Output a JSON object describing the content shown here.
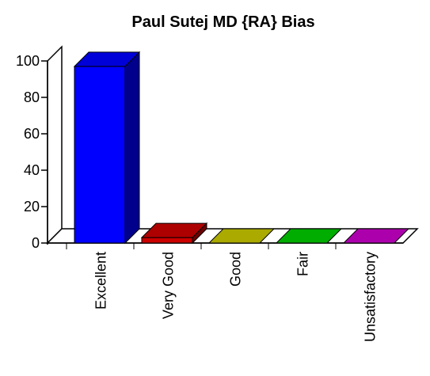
{
  "chart_data": {
    "type": "bar3d",
    "title": "Paul Sutej MD {RA} Bias",
    "categories": [
      "Excellent",
      "Very Good",
      "Good",
      "Fair",
      "Unsatisfactory"
    ],
    "values": [
      97,
      3,
      0,
      0,
      0
    ],
    "colors": [
      "#0000ff",
      "#cc0000",
      "#c8c800",
      "#00cc00",
      "#cc00cc"
    ],
    "ylim": [
      0,
      100
    ],
    "yticks": [
      0,
      20,
      40,
      60,
      80,
      100
    ]
  }
}
